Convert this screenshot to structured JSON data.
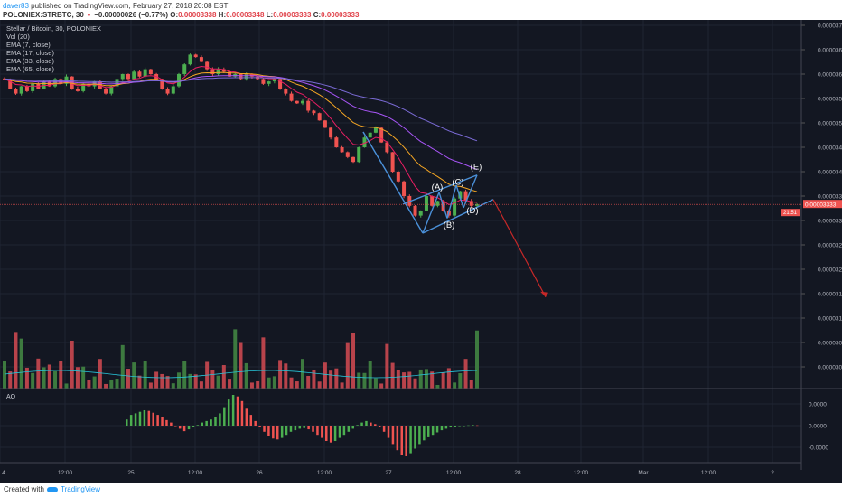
{
  "header": {
    "author": "daver83",
    "published_text": "published on TradingView.com, February 27, 2018 20:08 EST",
    "symbol": "POLONIEX:STRBTC, 30",
    "change_text": "−0.00000026 (−0.77%)",
    "o_label": "O:",
    "o_value": "0.00003338",
    "h_label": "H:",
    "h_value": "0.00003348",
    "l_label": "L:",
    "l_value": "0.00003333",
    "c_label": "C:",
    "c_value": "0.00003333"
  },
  "legend": {
    "title": "Stellar / Bitcoin, 30, POLONIEX",
    "vol": "Vol (20)",
    "ema7": "EMA (7, close)",
    "ema17": "EMA (17, close)",
    "ema33": "EMA (33, close)",
    "ema65": "EMA (65, close)"
  },
  "ao_label": "AO",
  "footer": {
    "created": "Created with",
    "brand": "TradingView"
  },
  "colors": {
    "up": "#4caf50",
    "down": "#ef5350",
    "ema7": "#e91e63",
    "ema17": "#f5a623",
    "ema33": "#a855f7",
    "ema65": "#7b6bd6",
    "pattern": "#4a90d9",
    "arrow": "#c62828",
    "vol_ma": "#26c6da"
  },
  "chart_data": {
    "type": "candlestick",
    "price_axis": {
      "ticks": [
        "0.00003700",
        "0.00003650",
        "0.00003600",
        "0.00003550",
        "0.00003500",
        "0.00003450",
        "0.00003400",
        "0.00003350",
        "0.00003300",
        "0.00003250",
        "0.00003200",
        "0.00003150",
        "0.00003100",
        "0.00003050",
        "0.00003000"
      ],
      "current_price": "0.00003333",
      "countdown": "21:51"
    },
    "ao_axis": {
      "ticks": [
        "0.0000",
        "0.0000",
        "-0.0000"
      ]
    },
    "time_axis": {
      "ticks": [
        "4",
        "12:00",
        "25",
        "12:00",
        "26",
        "12:00",
        "27",
        "12:00",
        "28",
        "12:00",
        "Mar",
        "12:00",
        "2"
      ]
    },
    "pattern_labels": [
      "(A)",
      "(B)",
      "(C)",
      "(D)",
      "(E)"
    ],
    "close_series": [
      3.59e-05,
      3.57e-05,
      3.56e-05,
      3.575e-05,
      3.565e-05,
      3.58e-05,
      3.57e-05,
      3.585e-05,
      3.575e-05,
      3.59e-05,
      3.58e-05,
      3.595e-05,
      3.57e-05,
      3.565e-05,
      3.58e-05,
      3.575e-05,
      3.585e-05,
      3.57e-05,
      3.56e-05,
      3.575e-05,
      3.59e-05,
      3.6e-05,
      3.59e-05,
      3.605e-05,
      3.595e-05,
      3.61e-05,
      3.6e-05,
      3.59e-05,
      3.57e-05,
      3.56e-05,
      3.575e-05,
      3.6e-05,
      3.62e-05,
      3.64e-05,
      3.635e-05,
      3.625e-05,
      3.61e-05,
      3.6e-05,
      3.61e-05,
      3.605e-05,
      3.595e-05,
      3.6e-05,
      3.59e-05,
      3.6e-05,
      3.595e-05,
      3.59e-05,
      3.58e-05,
      3.585e-05,
      3.59e-05,
      3.57e-05,
      3.56e-05,
      3.545e-05,
      3.54e-05,
      3.545e-05,
      3.525e-05,
      3.52e-05,
      3.505e-05,
      3.49e-05,
      3.47e-05,
      3.45e-05,
      3.44e-05,
      3.43e-05,
      3.42e-05,
      3.45e-05,
      3.47e-05,
      3.48e-05,
      3.49e-05,
      3.46e-05,
      3.44e-05,
      3.4e-05,
      3.38e-05,
      3.35e-05,
      3.33e-05,
      3.31e-05,
      3.32e-05,
      3.35e-05,
      3.33e-05,
      3.34e-05,
      3.32e-05,
      3.31e-05,
      3.345e-05,
      3.36e-05,
      3.34e-05,
      3.33e-05,
      3.333e-05
    ],
    "ao_series": [
      0.2,
      0.35,
      0.4,
      0.45,
      0.5,
      0.48,
      0.42,
      0.35,
      0.28,
      0.18,
      0.1,
      0.0,
      -0.1,
      -0.18,
      -0.12,
      -0.05,
      0.02,
      0.1,
      0.15,
      0.2,
      0.28,
      0.4,
      0.6,
      0.85,
      1.0,
      0.95,
      0.8,
      0.55,
      0.35,
      0.15,
      -0.05,
      -0.2,
      -0.35,
      -0.42,
      -0.45,
      -0.4,
      -0.3,
      -0.2,
      -0.15,
      -0.1,
      -0.08,
      -0.12,
      -0.2,
      -0.3,
      -0.4,
      -0.5,
      -0.55,
      -0.5,
      -0.4,
      -0.3,
      -0.2,
      -0.1,
      0.02,
      0.1,
      0.15,
      0.1,
      0.05,
      -0.05,
      -0.2,
      -0.4,
      -0.6,
      -0.8,
      -0.95,
      -1.0,
      -0.9,
      -0.75,
      -0.6,
      -0.48,
      -0.38,
      -0.3,
      -0.22,
      -0.15,
      -0.1,
      -0.06,
      -0.03,
      -0.01,
      0.0,
      0.01,
      0.02,
      0.01
    ]
  }
}
